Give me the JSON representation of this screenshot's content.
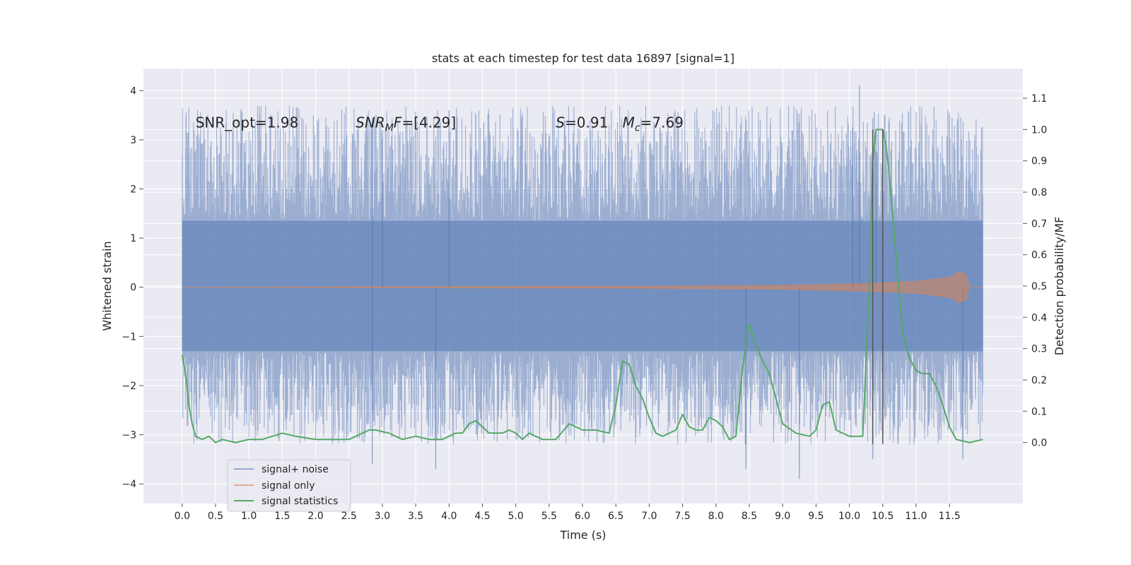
{
  "chart_data": {
    "type": "line",
    "title": "stats at each timestep for test data 16897 [signal=1]",
    "xlabel": "Time (s)",
    "ylabel_left": "Whitened strain",
    "ylabel_right": "Detection probability/MF",
    "xlim": [
      -0.58,
      12.6
    ],
    "ylim_left": [
      -4.4,
      4.45
    ],
    "ylim_right": [
      -0.195,
      1.195
    ],
    "xticks": [
      0.0,
      0.5,
      1.0,
      1.5,
      2.0,
      2.5,
      3.0,
      3.5,
      4.0,
      4.5,
      5.0,
      5.5,
      6.0,
      6.5,
      7.0,
      7.5,
      8.0,
      8.5,
      9.0,
      9.5,
      10.0,
      10.5,
      11.0,
      11.5
    ],
    "xtick_labels": [
      "0.0",
      "0.5",
      "1.0",
      "1.5",
      "2.0",
      "2.5",
      "3.0",
      "3.5",
      "4.0",
      "4.5",
      "5.0",
      "5.5",
      "6.0",
      "6.5",
      "7.0",
      "7.5",
      "8.0",
      "8.5",
      "9.0",
      "9.5",
      "10.0",
      "10.5",
      "11.0",
      "11.5"
    ],
    "yticks_left": [
      4,
      3,
      2,
      1,
      0,
      -1,
      -2,
      -3,
      -4
    ],
    "ytick_labels_left": [
      "4",
      "3",
      "2",
      "1",
      "0",
      "−1",
      "−2",
      "−3",
      "−4"
    ],
    "yticks_right": [
      1.1,
      1.0,
      0.9,
      0.8,
      0.7,
      0.6,
      0.5,
      0.4,
      0.3,
      0.2,
      0.1,
      0.0
    ],
    "ytick_labels_right": [
      "1.1",
      "1.0",
      "0.9",
      "0.8",
      "0.7",
      "0.6",
      "0.5",
      "0.4",
      "0.3",
      "0.2",
      "0.1",
      "0.0"
    ],
    "grid": true,
    "legend_position": "lower-left",
    "annotations": [
      {
        "text": "SNR_opt=1.98",
        "x": 0.2,
        "y": 3.25
      },
      {
        "text": "SNR",
        "sub": "M",
        "tail": "F=[4.29]",
        "x": 2.6,
        "y": 3.25
      },
      {
        "text": "S",
        "tail": "=0.91",
        "x": 5.6,
        "y": 3.25
      },
      {
        "text": "M",
        "sub": "c",
        "tail": "=7.69",
        "x": 6.6,
        "y": 3.25
      }
    ],
    "series": [
      {
        "name": "signal+ noise",
        "axis": "left",
        "color": "#4c72b0",
        "alpha": 0.5,
        "t_range": [
          0.0,
          12.0
        ],
        "band": {
          "core_low": -1.3,
          "core_high": 1.35,
          "typical_peak": 2.3,
          "max": 4.1,
          "min": -3.9
        },
        "notable_peaks": [
          [
            2.85,
            3.45
          ],
          [
            3.0,
            3.2
          ],
          [
            4.0,
            3.6
          ],
          [
            10.15,
            4.1
          ],
          [
            10.05,
            3.25
          ],
          [
            10.4,
            3.22
          ],
          [
            11.7,
            -3.5
          ],
          [
            9.25,
            -3.9
          ],
          [
            3.8,
            -3.7
          ],
          [
            8.45,
            -3.7
          ],
          [
            2.85,
            -3.6
          ],
          [
            10.35,
            -3.5
          ]
        ]
      },
      {
        "name": "signal only",
        "axis": "left",
        "color": "#dd8452",
        "t_range": [
          0.0,
          12.0
        ],
        "envelope": [
          [
            0.0,
            0.0
          ],
          [
            7.0,
            0.02
          ],
          [
            9.0,
            0.04
          ],
          [
            10.0,
            0.07
          ],
          [
            10.5,
            0.09
          ],
          [
            11.0,
            0.12
          ],
          [
            11.5,
            0.2
          ],
          [
            11.65,
            0.32
          ],
          [
            11.75,
            0.25
          ],
          [
            11.8,
            0.0
          ],
          [
            12.0,
            0.0
          ]
        ]
      },
      {
        "name": "signal statistics",
        "axis": "right",
        "color": "#55a868",
        "x": [
          0.0,
          0.05,
          0.1,
          0.15,
          0.2,
          0.3,
          0.4,
          0.5,
          0.6,
          0.8,
          1.0,
          1.2,
          1.5,
          1.7,
          2.0,
          2.3,
          2.5,
          2.7,
          2.8,
          2.9,
          3.1,
          3.3,
          3.5,
          3.7,
          3.9,
          4.1,
          4.2,
          4.3,
          4.4,
          4.5,
          4.6,
          4.8,
          4.9,
          5.0,
          5.1,
          5.2,
          5.4,
          5.6,
          5.8,
          6.0,
          6.2,
          6.4,
          6.5,
          6.6,
          6.7,
          6.8,
          6.9,
          7.0,
          7.1,
          7.2,
          7.4,
          7.5,
          7.6,
          7.7,
          7.8,
          7.9,
          8.0,
          8.1,
          8.2,
          8.3,
          8.4,
          8.5,
          8.6,
          8.7,
          8.8,
          8.9,
          9.0,
          9.2,
          9.4,
          9.5,
          9.6,
          9.7,
          9.8,
          10.0,
          10.2,
          10.3,
          10.35,
          10.4,
          10.45,
          10.5,
          10.55,
          10.6,
          10.7,
          10.8,
          10.9,
          11.0,
          11.1,
          11.2,
          11.3,
          11.4,
          11.5,
          11.6,
          11.8,
          12.0
        ],
        "y": [
          0.28,
          0.22,
          0.12,
          0.06,
          0.02,
          0.01,
          0.02,
          0.0,
          0.01,
          0.0,
          0.01,
          0.01,
          0.03,
          0.02,
          0.01,
          0.01,
          0.01,
          0.03,
          0.04,
          0.04,
          0.03,
          0.01,
          0.02,
          0.01,
          0.01,
          0.03,
          0.03,
          0.06,
          0.07,
          0.05,
          0.03,
          0.03,
          0.04,
          0.03,
          0.01,
          0.03,
          0.01,
          0.01,
          0.06,
          0.04,
          0.04,
          0.03,
          0.12,
          0.26,
          0.25,
          0.18,
          0.14,
          0.08,
          0.03,
          0.02,
          0.04,
          0.09,
          0.05,
          0.04,
          0.04,
          0.08,
          0.07,
          0.05,
          0.01,
          0.02,
          0.24,
          0.38,
          0.31,
          0.26,
          0.22,
          0.14,
          0.06,
          0.03,
          0.02,
          0.04,
          0.12,
          0.13,
          0.04,
          0.02,
          0.02,
          0.5,
          0.9,
          1.0,
          1.0,
          1.0,
          0.95,
          0.85,
          0.6,
          0.35,
          0.27,
          0.23,
          0.22,
          0.22,
          0.18,
          0.12,
          0.05,
          0.01,
          0.0,
          0.01
        ]
      }
    ],
    "markers": [
      {
        "x": 10.35,
        "y_range": [
          -0.005,
          1.0
        ],
        "color": "#555555"
      },
      {
        "x": 10.5,
        "y_range": [
          -0.005,
          1.0
        ],
        "color": "#555555"
      }
    ]
  }
}
